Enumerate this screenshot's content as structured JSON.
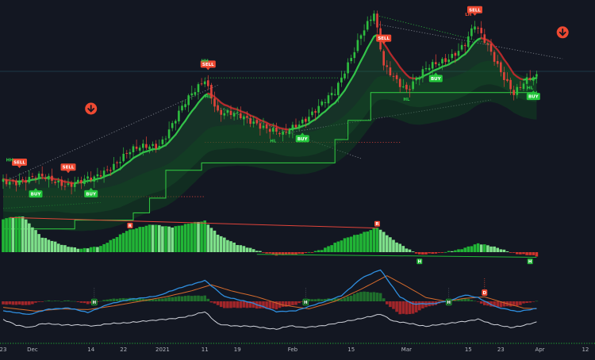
{
  "chart_data": {
    "type": "candlestick",
    "colors": {
      "background": "#131722",
      "bull": "#2ebd3f",
      "bear": "#e0433a",
      "trend_up": "#33c24a",
      "trend_down": "#b7282d",
      "trail_stop": "#2fbf3f",
      "osc_bull_light": "#7ee08a",
      "osc_bull": "#21b536",
      "osc_bear": "#d0342c",
      "macd": "#2f8fe0",
      "signal": "#d46a2c",
      "rsi": "#d1d4dc",
      "buy": "#24c73c",
      "sell": "#ef4a32",
      "pivot_high": "#2fcf4a",
      "pivot_low": "#2fcf4a"
    },
    "x_axis": {
      "ticks": [
        {
          "label": "23",
          "i": 0
        },
        {
          "label": "Dec",
          "i": 9
        },
        {
          "label": "14",
          "i": 27
        },
        {
          "label": "22",
          "i": 37
        },
        {
          "label": "2021",
          "i": 49
        },
        {
          "label": "11",
          "i": 62
        },
        {
          "label": "19",
          "i": 72
        },
        {
          "label": "Feb",
          "i": 89
        },
        {
          "label": "15",
          "i": 107
        },
        {
          "label": "Mar",
          "i": 124
        },
        {
          "label": "15",
          "i": 143
        },
        {
          "label": "23",
          "i": 153
        },
        {
          "label": "Apr",
          "i": 165
        },
        {
          "label": "12",
          "i": 179
        }
      ]
    },
    "price_path": [
      [
        0,
        1.0
      ],
      [
        10,
        1.3
      ],
      [
        20,
        0.9
      ],
      [
        28,
        1.15
      ],
      [
        38,
        3.0
      ],
      [
        48,
        3.6
      ],
      [
        55,
        6.0
      ],
      [
        62,
        8.1
      ],
      [
        66,
        5.8
      ],
      [
        78,
        5.1
      ],
      [
        86,
        4.1
      ],
      [
        95,
        5.8
      ],
      [
        102,
        7.0
      ],
      [
        110,
        11.2
      ],
      [
        114,
        12.4
      ],
      [
        117,
        8.8
      ],
      [
        124,
        7.4
      ],
      [
        130,
        8.6
      ],
      [
        136,
        9.4
      ],
      [
        142,
        10.4
      ],
      [
        145,
        11.6
      ],
      [
        150,
        9.9
      ],
      [
        157,
        7.0
      ],
      [
        162,
        8.0
      ],
      [
        164,
        8.2
      ]
    ],
    "trailing_stop_steps": [
      [
        0,
        -2.2
      ],
      [
        22,
        -1.6
      ],
      [
        40,
        -1.1
      ],
      [
        45,
        -0.1
      ],
      [
        50,
        1.8
      ],
      [
        61,
        2.3
      ],
      [
        102,
        3.9
      ],
      [
        106,
        5.2
      ],
      [
        113,
        7.1
      ],
      [
        164,
        7.2
      ]
    ],
    "signals": [
      {
        "type": "sell",
        "label": "SELL",
        "i": 5
      },
      {
        "type": "sell",
        "label": "SELL",
        "i": 20
      },
      {
        "type": "buy",
        "label": "BUY",
        "i": 10
      },
      {
        "type": "buy",
        "label": "BUY",
        "i": 27
      },
      {
        "type": "sell",
        "label": "SELL",
        "i": 63
      },
      {
        "type": "buy",
        "label": "BUY",
        "i": 92
      },
      {
        "type": "sell",
        "label": "SELL",
        "i": 117
      },
      {
        "type": "buy",
        "label": "BUY",
        "i": 133
      },
      {
        "type": "sell",
        "label": "SELL",
        "i": 145
      },
      {
        "type": "buy",
        "label": "BUY",
        "i": 163
      }
    ],
    "pivots": [
      {
        "label": "HH",
        "i": 2
      },
      {
        "label": "HH",
        "i": 62
      },
      {
        "label": "HH",
        "i": 114
      },
      {
        "label": "LH",
        "i": 143
      },
      {
        "label": "HL",
        "i": 63
      },
      {
        "label": "HL",
        "i": 83
      },
      {
        "label": "HL",
        "i": 124
      },
      {
        "label": "HL",
        "i": 162
      }
    ],
    "oscillator_path": [
      [
        0,
        9
      ],
      [
        6,
        10
      ],
      [
        12,
        4
      ],
      [
        18,
        2
      ],
      [
        24,
        1
      ],
      [
        30,
        1.5
      ],
      [
        38,
        6
      ],
      [
        46,
        7.5
      ],
      [
        52,
        7
      ],
      [
        62,
        8.5
      ],
      [
        66,
        5
      ],
      [
        72,
        2
      ],
      [
        78,
        0.5
      ],
      [
        84,
        -0.8
      ],
      [
        90,
        -0.8
      ],
      [
        98,
        0.8
      ],
      [
        106,
        4
      ],
      [
        115,
        6.8
      ],
      [
        120,
        3.2
      ],
      [
        124,
        1.2
      ],
      [
        128,
        -0.6
      ],
      [
        134,
        -0.4
      ],
      [
        140,
        0.8
      ],
      [
        146,
        2.3
      ],
      [
        152,
        1.2
      ],
      [
        158,
        -0.4
      ],
      [
        164,
        -1.2
      ]
    ],
    "oscillator_markers": [
      {
        "label": "R",
        "i": 39,
        "type": "bear"
      },
      {
        "label": "R",
        "i": 115,
        "type": "bear"
      },
      {
        "label": "H",
        "i": 128,
        "type": "bull"
      },
      {
        "label": "H",
        "i": 162,
        "type": "bull"
      }
    ],
    "macd_path": [
      [
        0,
        -1.2
      ],
      [
        8,
        -1.8
      ],
      [
        14,
        -1.0
      ],
      [
        20,
        -0.9
      ],
      [
        26,
        -1.5
      ],
      [
        32,
        -0.4
      ],
      [
        40,
        0.3
      ],
      [
        48,
        0.8
      ],
      [
        56,
        2.0
      ],
      [
        62,
        2.8
      ],
      [
        68,
        0.6
      ],
      [
        76,
        -0.1
      ],
      [
        84,
        -1.4
      ],
      [
        90,
        -1.2
      ],
      [
        98,
        -0.2
      ],
      [
        104,
        0.8
      ],
      [
        110,
        3.0
      ],
      [
        116,
        4.2
      ],
      [
        122,
        0.6
      ],
      [
        126,
        -0.4
      ],
      [
        132,
        -0.3
      ],
      [
        138,
        0.2
      ],
      [
        142,
        0.8
      ],
      [
        146,
        0.5
      ],
      [
        152,
        -0.8
      ],
      [
        158,
        -1.4
      ],
      [
        164,
        -0.9
      ]
    ],
    "signal_path": [
      [
        0,
        -0.8
      ],
      [
        10,
        -1.3
      ],
      [
        18,
        -1.0
      ],
      [
        26,
        -1.1
      ],
      [
        34,
        -0.6
      ],
      [
        42,
        0.0
      ],
      [
        50,
        0.6
      ],
      [
        58,
        1.4
      ],
      [
        64,
        2.2
      ],
      [
        70,
        1.4
      ],
      [
        78,
        0.6
      ],
      [
        86,
        -0.5
      ],
      [
        94,
        -1.0
      ],
      [
        102,
        0.0
      ],
      [
        110,
        1.6
      ],
      [
        118,
        3.4
      ],
      [
        124,
        2.0
      ],
      [
        130,
        0.5
      ],
      [
        136,
        0.0
      ],
      [
        142,
        0.4
      ],
      [
        148,
        0.6
      ],
      [
        154,
        -0.2
      ],
      [
        160,
        -0.9
      ],
      [
        164,
        -1.0
      ]
    ],
    "macd_markers": [
      {
        "label": "H",
        "i": 28
      },
      {
        "label": "H",
        "i": 93
      },
      {
        "label": "H",
        "i": 137
      },
      {
        "label": "D",
        "i": 148
      }
    ],
    "rsi_path": [
      [
        0,
        48
      ],
      [
        4,
        36
      ],
      [
        8,
        32
      ],
      [
        12,
        40
      ],
      [
        18,
        36
      ],
      [
        24,
        38
      ],
      [
        28,
        34
      ],
      [
        34,
        40
      ],
      [
        40,
        44
      ],
      [
        46,
        46
      ],
      [
        52,
        52
      ],
      [
        58,
        58
      ],
      [
        62,
        66
      ],
      [
        66,
        40
      ],
      [
        72,
        34
      ],
      [
        78,
        32
      ],
      [
        84,
        28
      ],
      [
        88,
        34
      ],
      [
        92,
        30
      ],
      [
        98,
        36
      ],
      [
        104,
        42
      ],
      [
        108,
        48
      ],
      [
        112,
        56
      ],
      [
        116,
        62
      ],
      [
        120,
        44
      ],
      [
        126,
        40
      ],
      [
        130,
        34
      ],
      [
        136,
        38
      ],
      [
        140,
        44
      ],
      [
        146,
        50
      ],
      [
        150,
        38
      ],
      [
        156,
        32
      ],
      [
        160,
        36
      ],
      [
        164,
        42
      ]
    ]
  }
}
